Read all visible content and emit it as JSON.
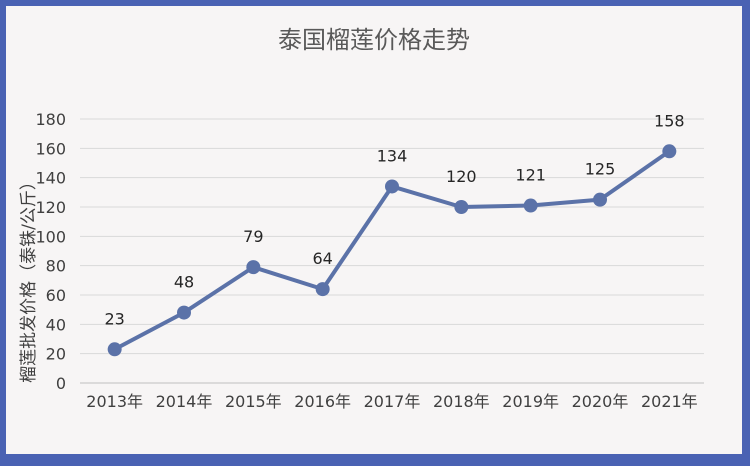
{
  "chart_data": {
    "type": "line",
    "title": "泰国榴莲价格走势",
    "xlabel": "",
    "ylabel": "榴莲批发价格（泰铢/公斤）",
    "categories": [
      "2013年",
      "2014年",
      "2015年",
      "2016年",
      "2017年",
      "2018年",
      "2019年",
      "2020年",
      "2021年"
    ],
    "values": [
      23,
      48,
      79,
      64,
      134,
      120,
      121,
      125,
      158
    ],
    "ylim": [
      0,
      180
    ],
    "yticks": [
      0,
      20,
      40,
      60,
      80,
      100,
      120,
      140,
      160,
      180
    ],
    "grid": true,
    "legend": "none",
    "colors": {
      "line": "#5b72a8",
      "frame": "#4a62b3",
      "background": "#f7f5f5"
    }
  }
}
